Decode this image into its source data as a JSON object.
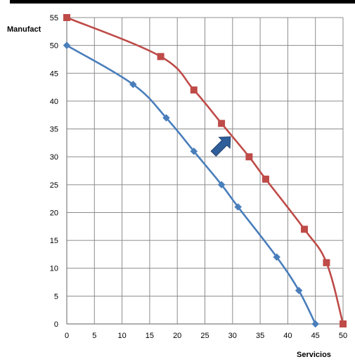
{
  "chart_data": {
    "type": "line",
    "title": "",
    "xlabel": "Servicios",
    "ylabel": "Manufact",
    "xlim": [
      0,
      50
    ],
    "ylim": [
      0,
      55
    ],
    "xticks": [
      0,
      5,
      10,
      15,
      20,
      25,
      30,
      35,
      40,
      45,
      50
    ],
    "yticks": [
      0,
      5,
      10,
      15,
      20,
      25,
      30,
      35,
      40,
      45,
      50,
      55
    ],
    "grid": true,
    "legend": "none",
    "series": [
      {
        "color": "#4a7ebb",
        "marker": "diamond",
        "x": [
          0,
          12,
          18,
          23,
          28,
          31,
          38,
          42,
          45
        ],
        "y": [
          50,
          43,
          37,
          31,
          25,
          21,
          12,
          6,
          0
        ]
      },
      {
        "color": "#be4b48",
        "marker": "square",
        "x": [
          0,
          17,
          23,
          28,
          33,
          36,
          43,
          47,
          50
        ],
        "y": [
          55,
          48,
          42,
          36,
          30,
          26,
          17,
          11,
          0
        ]
      }
    ],
    "annotation": {
      "shape": "arrow",
      "direction": "up-right",
      "color": "#2f5f9a",
      "at": [
        28,
        32
      ]
    }
  }
}
